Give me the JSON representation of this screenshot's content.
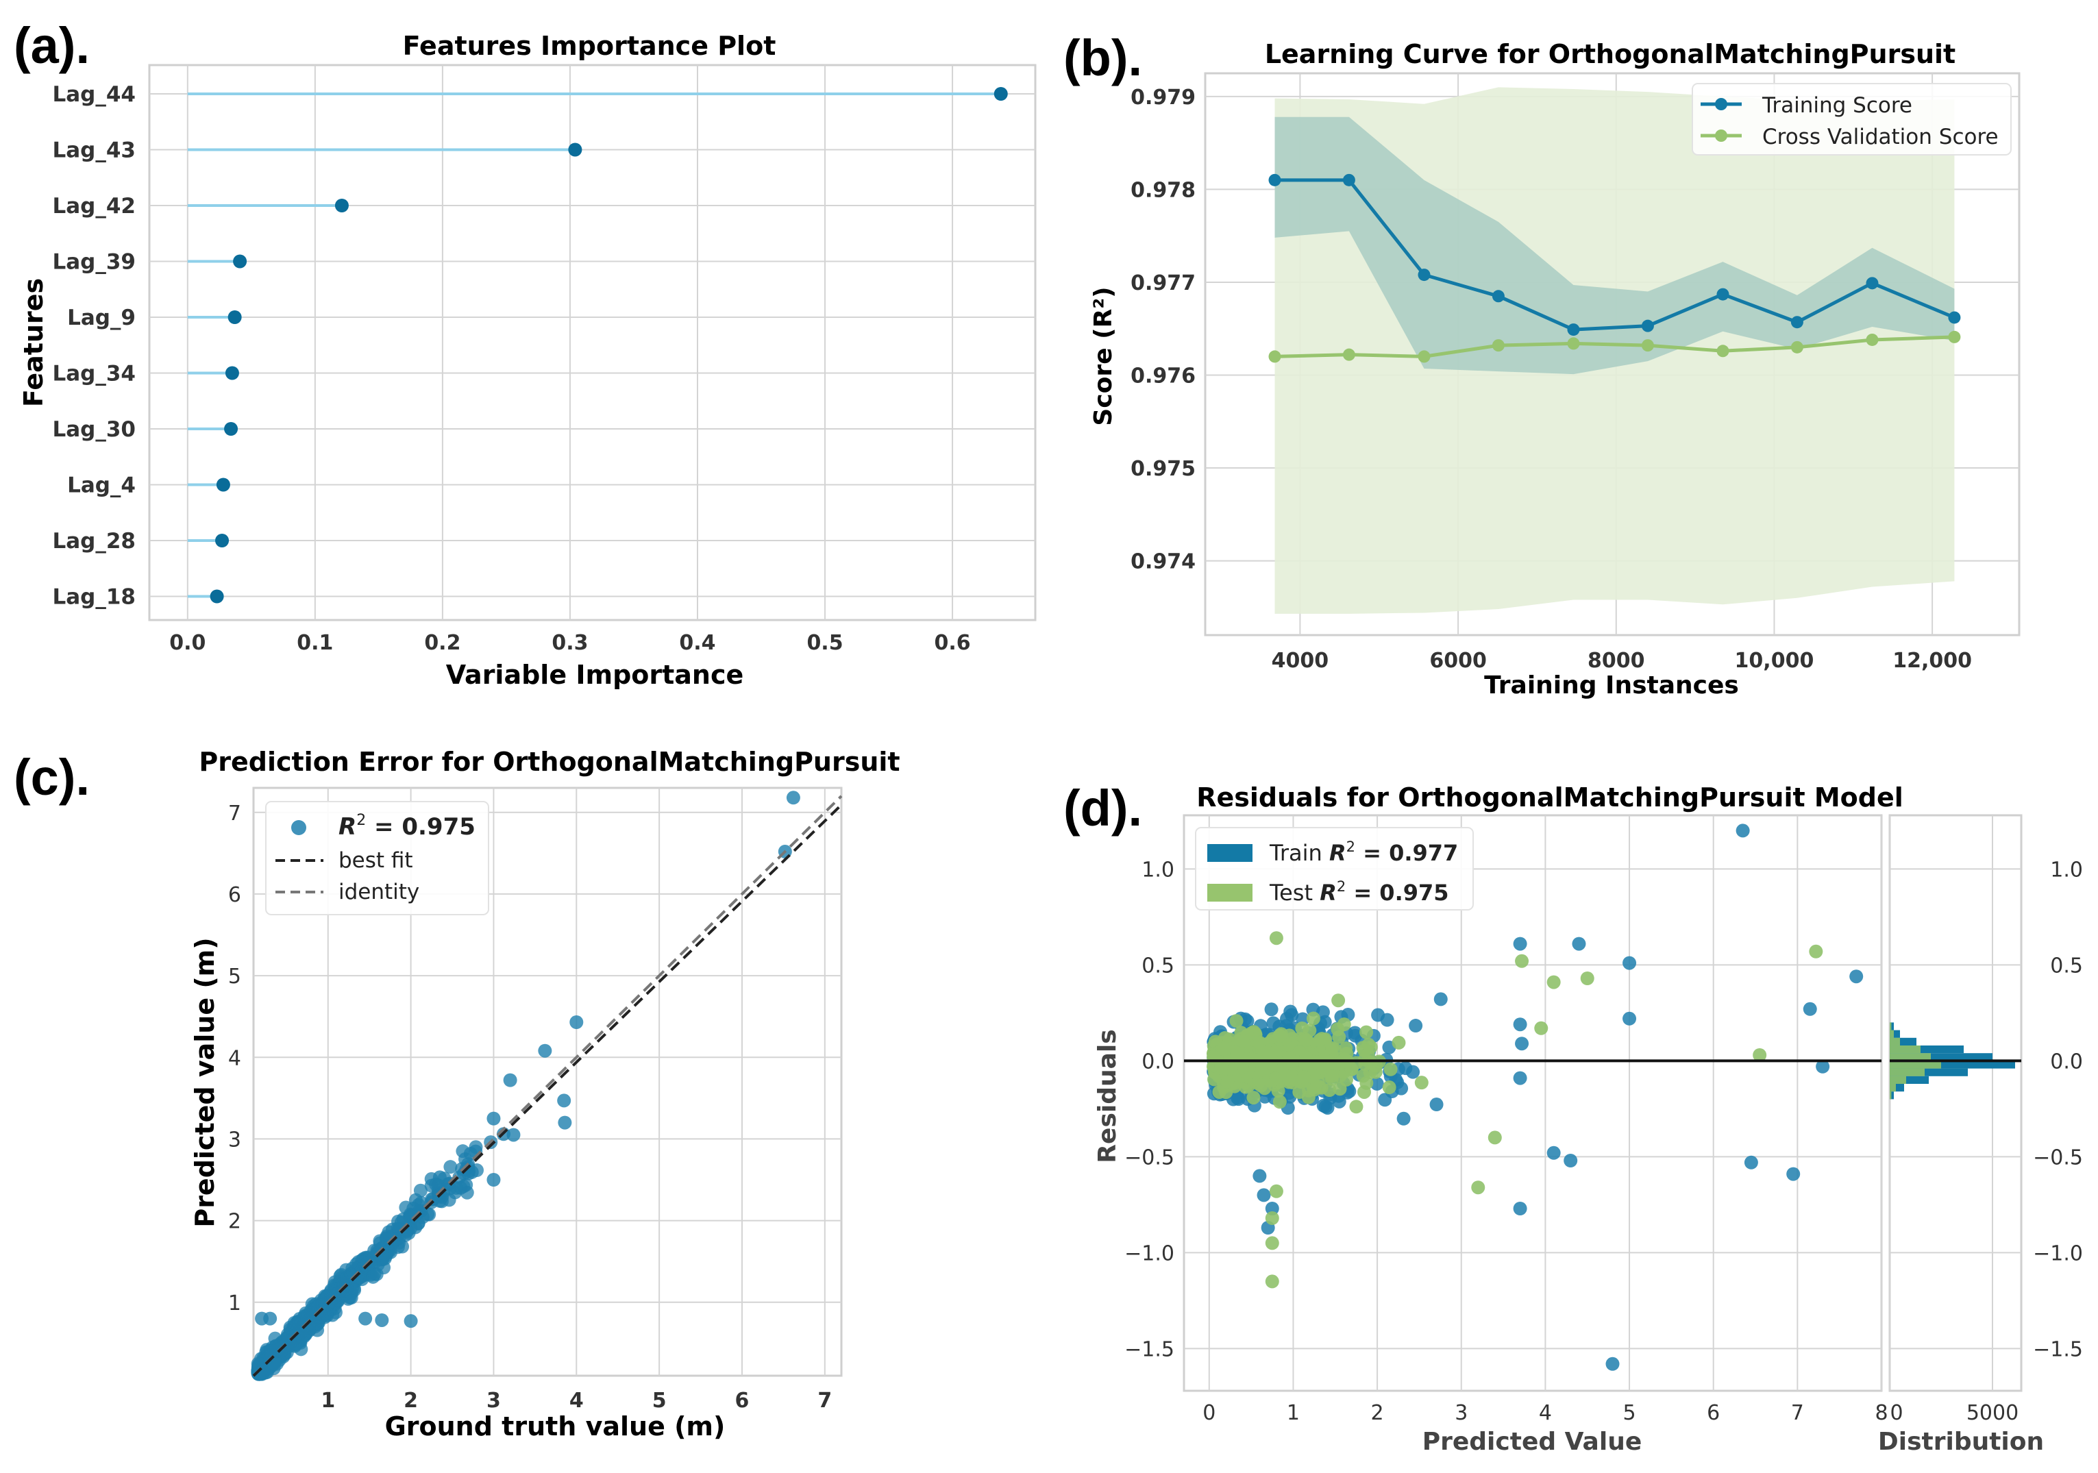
{
  "colors": {
    "grid": "#d4d4d4",
    "frame": "#cfcfcf",
    "lollipop_line": "#8fd0ea",
    "lollipop_dot": "#0a6c99",
    "train": "#137aa6",
    "train_band": "#a9ccc3",
    "cv": "#97c46e",
    "cv_band": "#e4eed8",
    "scatter_train": "#1e7fae",
    "scatter_test": "#8fc16a",
    "best_fit": "#222222",
    "identity": "#777777",
    "zero_line": "#111111"
  },
  "chart_data": [
    {
      "id": "a",
      "panel_label": "(a).",
      "type": "lollipop",
      "title": "Features Importance Plot",
      "xlabel": "Variable Importance",
      "ylabel": "Features",
      "xlim": [
        -0.03,
        0.665
      ],
      "xticks": [
        0.0,
        0.1,
        0.2,
        0.3,
        0.4,
        0.5,
        0.6
      ],
      "xtick_labels": [
        "0.0",
        "0.1",
        "0.2",
        "0.3",
        "0.4",
        "0.5",
        "0.6"
      ],
      "categories": [
        "Lag_44",
        "Lag_43",
        "Lag_42",
        "Lag_39",
        "Lag_9",
        "Lag_34",
        "Lag_30",
        "Lag_4",
        "Lag_28",
        "Lag_18"
      ],
      "values": [
        0.638,
        0.304,
        0.121,
        0.041,
        0.037,
        0.035,
        0.034,
        0.028,
        0.027,
        0.023
      ]
    },
    {
      "id": "b",
      "panel_label": "(b).",
      "type": "line",
      "title": "Learning Curve for OrthogonalMatchingPursuit",
      "xlabel": "Training Instances",
      "ylabel": "Score  (R²)",
      "xlim": [
        2800,
        13100
      ],
      "ylim": [
        973.2,
        979.25
      ],
      "y_scale_note": "values x 0.001",
      "xticks": [
        4000,
        6000,
        8000,
        10000,
        12000
      ],
      "xtick_labels": [
        "4000",
        "6000",
        "8000",
        "10,000",
        "12,000"
      ],
      "yticks": [
        974,
        975,
        976,
        977,
        978,
        979
      ],
      "ytick_labels": [
        "0.974",
        "0.975",
        "0.976",
        "0.977",
        "0.978",
        "0.979"
      ],
      "legend": {
        "position": "top-right",
        "entries": [
          "Training Score",
          "Cross Validation Score"
        ]
      },
      "x": [
        3680,
        4620,
        5570,
        6510,
        7460,
        8400,
        9350,
        10290,
        11240,
        12280
      ],
      "series": [
        {
          "name": "Training Score",
          "values": [
            978.1,
            978.1,
            977.08,
            976.85,
            976.49,
            976.53,
            976.87,
            976.57,
            976.99,
            976.62
          ],
          "upper": [
            978.78,
            978.78,
            978.1,
            977.65,
            976.97,
            976.9,
            977.22,
            976.86,
            977.37,
            976.93
          ],
          "lower": [
            977.48,
            977.55,
            976.07,
            976.04,
            976.01,
            976.15,
            976.47,
            976.28,
            976.52,
            976.37
          ]
        },
        {
          "name": "Cross Validation Score",
          "values": [
            976.2,
            976.22,
            976.2,
            976.32,
            976.34,
            976.32,
            976.26,
            976.3,
            976.38,
            976.41
          ],
          "upper": [
            978.98,
            978.97,
            978.92,
            979.1,
            979.08,
            979.05,
            979.0,
            978.96,
            978.95,
            978.97
          ],
          "lower": [
            973.43,
            973.43,
            973.44,
            973.48,
            973.58,
            973.58,
            973.53,
            973.6,
            973.72,
            973.78
          ]
        }
      ]
    },
    {
      "id": "c",
      "panel_label": "(c).",
      "type": "scatter",
      "title": "Prediction Error for OrthogonalMatchingPursuit",
      "xlabel": "Ground truth value (m)",
      "ylabel": "Predicted value (m)",
      "xlim": [
        0.1,
        7.2
      ],
      "ylim": [
        0.1,
        7.3
      ],
      "xticks": [
        1,
        2,
        3,
        4,
        5,
        6,
        7
      ],
      "xtick_labels": [
        "1",
        "2",
        "3",
        "4",
        "5",
        "6",
        "7"
      ],
      "yticks": [
        1,
        2,
        3,
        4,
        5,
        6,
        7
      ],
      "ytick_labels": [
        "1",
        "2",
        "3",
        "4",
        "5",
        "6",
        "7"
      ],
      "legend": {
        "position": "top-left",
        "r2_label": "R",
        "r2_sup": "2",
        "r2_value": " = 0.975",
        "entries": [
          "best fit",
          "identity"
        ]
      },
      "best_fit": {
        "slope": 0.985,
        "intercept": 0.0
      },
      "outliers": [
        [
          6.62,
          7.18
        ],
        [
          6.52,
          6.52
        ],
        [
          3.62,
          4.08
        ],
        [
          4.0,
          4.43
        ],
        [
          3.85,
          3.47
        ],
        [
          3.86,
          3.2
        ],
        [
          3.2,
          3.72
        ],
        [
          3.0,
          3.25
        ],
        [
          3.12,
          3.06
        ],
        [
          3.24,
          3.05
        ],
        [
          3.0,
          2.5
        ],
        [
          2.35,
          2.53
        ],
        [
          2.55,
          2.4
        ],
        [
          0.2,
          0.8
        ],
        [
          0.3,
          0.8
        ],
        [
          1.65,
          0.78
        ],
        [
          2.0,
          0.77
        ],
        [
          1.45,
          0.8
        ],
        [
          0.35,
          0.25
        ]
      ]
    },
    {
      "id": "d",
      "panel_label": "(d).",
      "type": "scatter",
      "title": "Residuals for OrthogonalMatchingPursuit Model",
      "xlabel": "Predicted Value",
      "ylabel": "Residuals",
      "xlim": [
        -0.3,
        8.0
      ],
      "ylim": [
        -1.72,
        1.28
      ],
      "xticks": [
        0,
        1,
        2,
        3,
        4,
        5,
        6,
        7,
        8
      ],
      "xtick_labels": [
        "0",
        "1",
        "2",
        "3",
        "4",
        "5",
        "6",
        "7",
        "8"
      ],
      "yticks": [
        1.0,
        0.5,
        0.0,
        -0.5,
        -1.0,
        -1.5
      ],
      "ytick_labels": [
        "1.0",
        "0.5",
        "0.0",
        "−0.5",
        "−1.0",
        "−1.5"
      ],
      "legend": {
        "position": "top-left",
        "train_prefix": "Train ",
        "test_prefix": "Test ",
        "r2_label": "R",
        "r2_sup": "2",
        "train_r2": " = 0.977",
        "test_r2": " = 0.975"
      },
      "train_outliers": [
        [
          6.35,
          1.2
        ],
        [
          4.4,
          0.61
        ],
        [
          3.7,
          0.61
        ],
        [
          5.0,
          0.51
        ],
        [
          5.0,
          0.22
        ],
        [
          7.7,
          0.44
        ],
        [
          7.15,
          0.27
        ],
        [
          3.7,
          0.19
        ],
        [
          3.72,
          0.09
        ],
        [
          3.7,
          -0.09
        ],
        [
          6.45,
          -0.53
        ],
        [
          6.95,
          -0.59
        ],
        [
          7.3,
          -0.03
        ],
        [
          4.1,
          -0.48
        ],
        [
          4.3,
          -0.52
        ],
        [
          3.7,
          -0.77
        ],
        [
          4.8,
          -1.58
        ],
        [
          0.7,
          -0.87
        ],
        [
          0.65,
          -0.7
        ],
        [
          0.6,
          -0.6
        ],
        [
          0.75,
          -0.77
        ]
      ],
      "test_outliers": [
        [
          7.22,
          0.57
        ],
        [
          3.72,
          0.52
        ],
        [
          4.1,
          0.41
        ],
        [
          4.5,
          0.43
        ],
        [
          3.95,
          0.17
        ],
        [
          6.55,
          0.03
        ],
        [
          3.4,
          -0.4
        ],
        [
          3.2,
          -0.66
        ],
        [
          0.75,
          -0.82
        ],
        [
          0.75,
          -0.95
        ],
        [
          0.75,
          -1.15
        ],
        [
          0.8,
          0.64
        ],
        [
          0.8,
          -0.68
        ]
      ],
      "histogram": {
        "xlabel": "Distribution",
        "xticks": [
          0,
          5000
        ],
        "xtick_labels": [
          "0",
          "5000"
        ],
        "xlim": [
          0,
          6400
        ],
        "bin_centers": [
          -0.18,
          -0.14,
          -0.1,
          -0.06,
          -0.02,
          0.02,
          0.06,
          0.1,
          0.14,
          0.18
        ],
        "train_counts": [
          200,
          700,
          1900,
          3800,
          6100,
          5000,
          3600,
          1300,
          500,
          200
        ],
        "test_counts": [
          80,
          300,
          800,
          1700,
          2500,
          2000,
          1500,
          500,
          200,
          80
        ]
      },
      "right_ytick_labels": [
        "1.0",
        "0.5",
        "0.0",
        "−0.5",
        "−1.0",
        "−1.5"
      ]
    }
  ]
}
